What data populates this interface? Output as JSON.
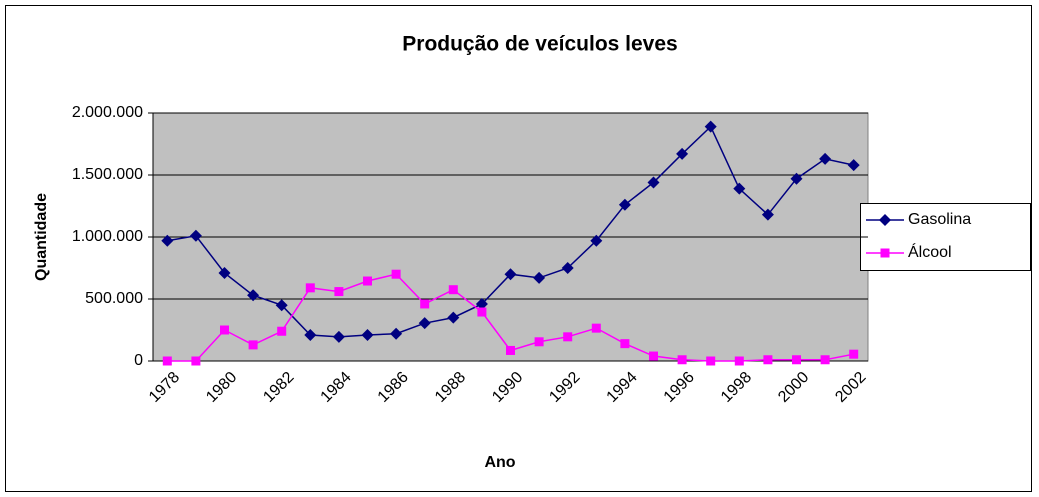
{
  "chart_data": {
    "type": "line",
    "title": "Produção de veículos leves",
    "x_label": "Ano",
    "y_label": "Quantidade",
    "categories": [
      "1978",
      null,
      "1980",
      null,
      "1982",
      null,
      "1984",
      null,
      "1986",
      null,
      "1988",
      null,
      "1990",
      null,
      "1992",
      null,
      "1994",
      null,
      "1996",
      null,
      "1998",
      null,
      "2000",
      null,
      "2002"
    ],
    "series": [
      {
        "name": "Gasolina",
        "color": "#000080",
        "marker": "diamond",
        "values": [
          970000,
          1010000,
          710000,
          530000,
          450000,
          210000,
          195000,
          210000,
          220000,
          305000,
          350000,
          460000,
          700000,
          670000,
          750000,
          970000,
          1260000,
          1440000,
          1670000,
          1890000,
          1390000,
          1180000,
          1470000,
          1630000,
          1580000
        ]
      },
      {
        "name": "Álcool",
        "color": "#FF00FF",
        "marker": "square",
        "values": [
          0,
          0,
          250000,
          130000,
          240000,
          590000,
          560000,
          645000,
          700000,
          460000,
          575000,
          395000,
          85000,
          155000,
          195000,
          265000,
          140000,
          40000,
          10000,
          0,
          0,
          10000,
          10000,
          10000,
          55000
        ]
      }
    ],
    "ylim": [
      0,
      2000000
    ],
    "yticks": [
      0,
      {
        "value": 500000,
        "label": "500.000"
      },
      {
        "value": 1000000,
        "label": "1.000.000"
      },
      {
        "value": 1500000,
        "label": "1.500.000"
      },
      {
        "value": 2000000,
        "label": "2.000.000"
      }
    ],
    "grid": true,
    "plot_background": "#C0C0C0",
    "legend": "right"
  }
}
